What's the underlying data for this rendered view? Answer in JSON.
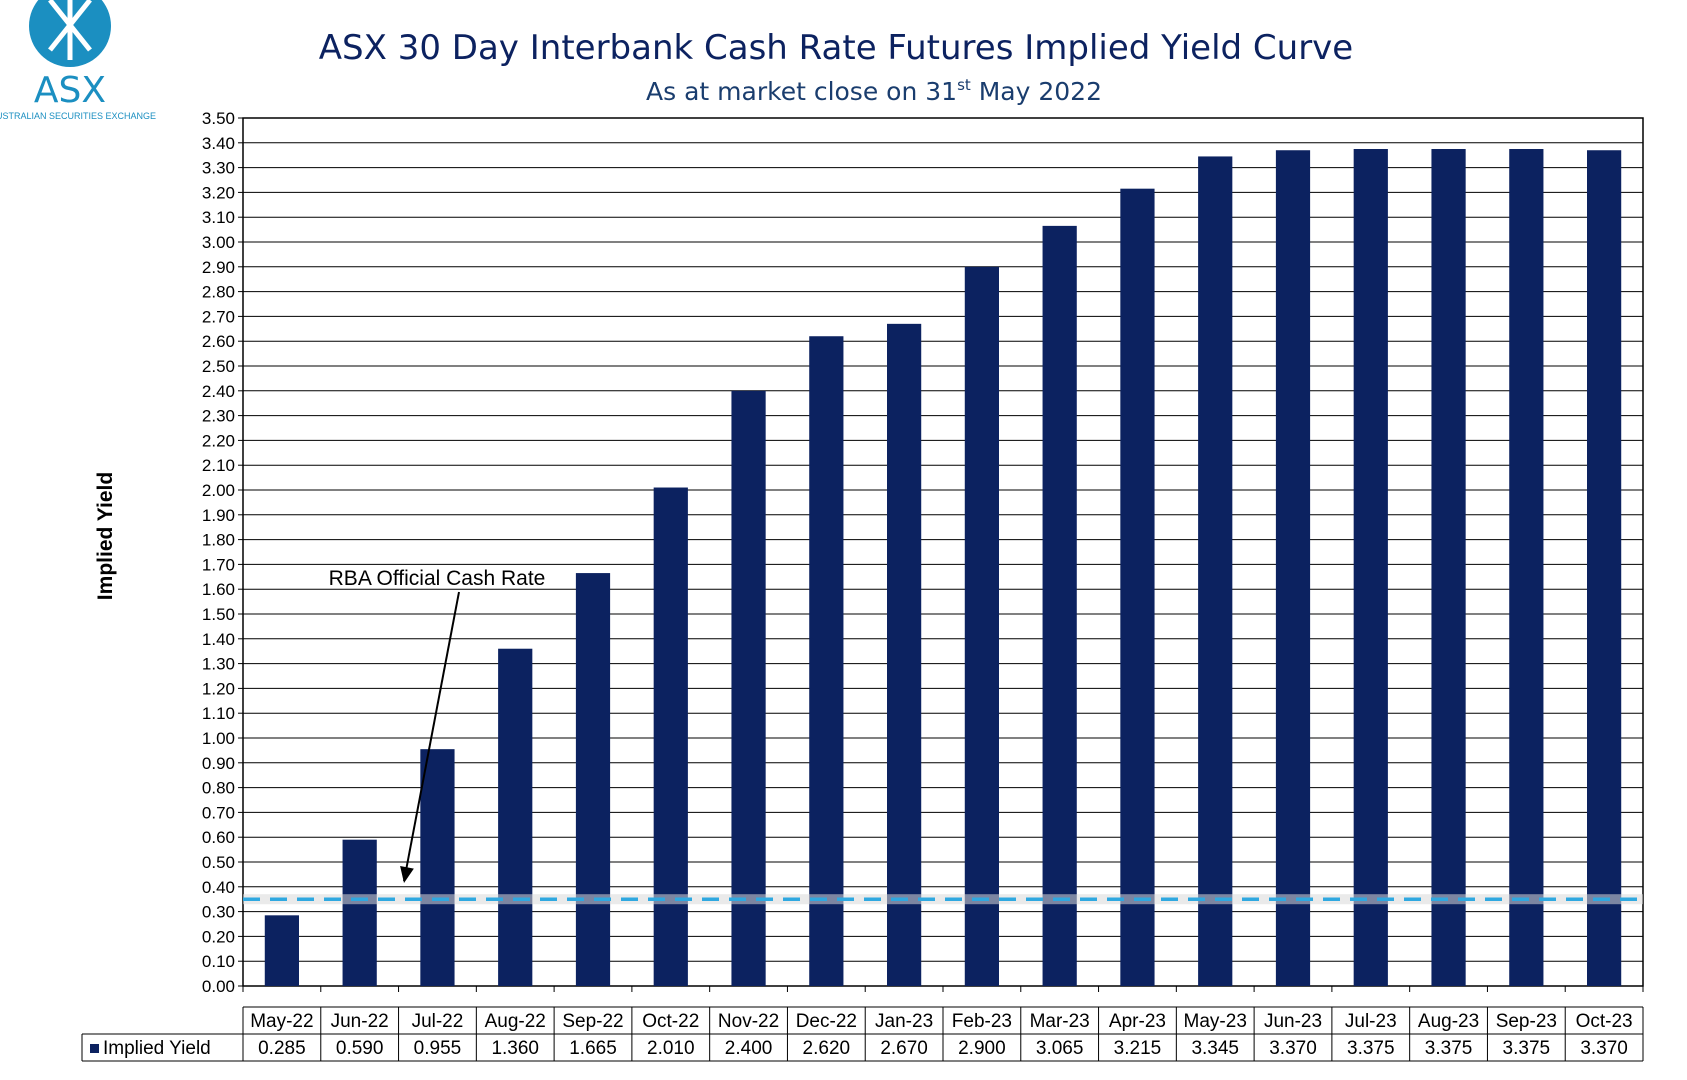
{
  "logo": {
    "name": "ASX",
    "tagline": "AUSTRALIAN SECURITIES EXCHANGE",
    "color": "#1b8fc1"
  },
  "chart_data": {
    "type": "bar",
    "title": "ASX 30 Day Interbank Cash Rate Futures Implied Yield Curve",
    "subtitle_prefix": "As at market close on 31",
    "subtitle_sup": "st",
    "subtitle_suffix": " May 2022",
    "ylabel": "Implied Yield",
    "xlabel": "",
    "ylim": [
      0,
      3.5
    ],
    "ytick_step": 0.1,
    "grid": true,
    "categories": [
      "May-22",
      "Jun-22",
      "Jul-22",
      "Aug-22",
      "Sep-22",
      "Oct-22",
      "Nov-22",
      "Dec-22",
      "Jan-23",
      "Feb-23",
      "Mar-23",
      "Apr-23",
      "May-23",
      "Jun-23",
      "Jul-23",
      "Aug-23",
      "Sep-23",
      "Oct-23"
    ],
    "series": [
      {
        "name": "Implied Yield",
        "color": "#0c2260",
        "values": [
          0.285,
          0.59,
          0.955,
          1.36,
          1.665,
          2.01,
          2.4,
          2.62,
          2.67,
          2.9,
          3.065,
          3.215,
          3.345,
          3.37,
          3.375,
          3.375,
          3.375,
          3.37
        ],
        "labels": [
          "0.285",
          "0.590",
          "0.955",
          "1.360",
          "1.665",
          "2.010",
          "2.400",
          "2.620",
          "2.670",
          "2.900",
          "3.065",
          "3.215",
          "3.345",
          "3.370",
          "3.375",
          "3.375",
          "3.375",
          "3.370"
        ]
      }
    ],
    "reference_line": {
      "value": 0.35,
      "color": "#2fa8e0"
    },
    "annotation": {
      "text": "RBA Official Cash Rate"
    },
    "data_table": true
  }
}
